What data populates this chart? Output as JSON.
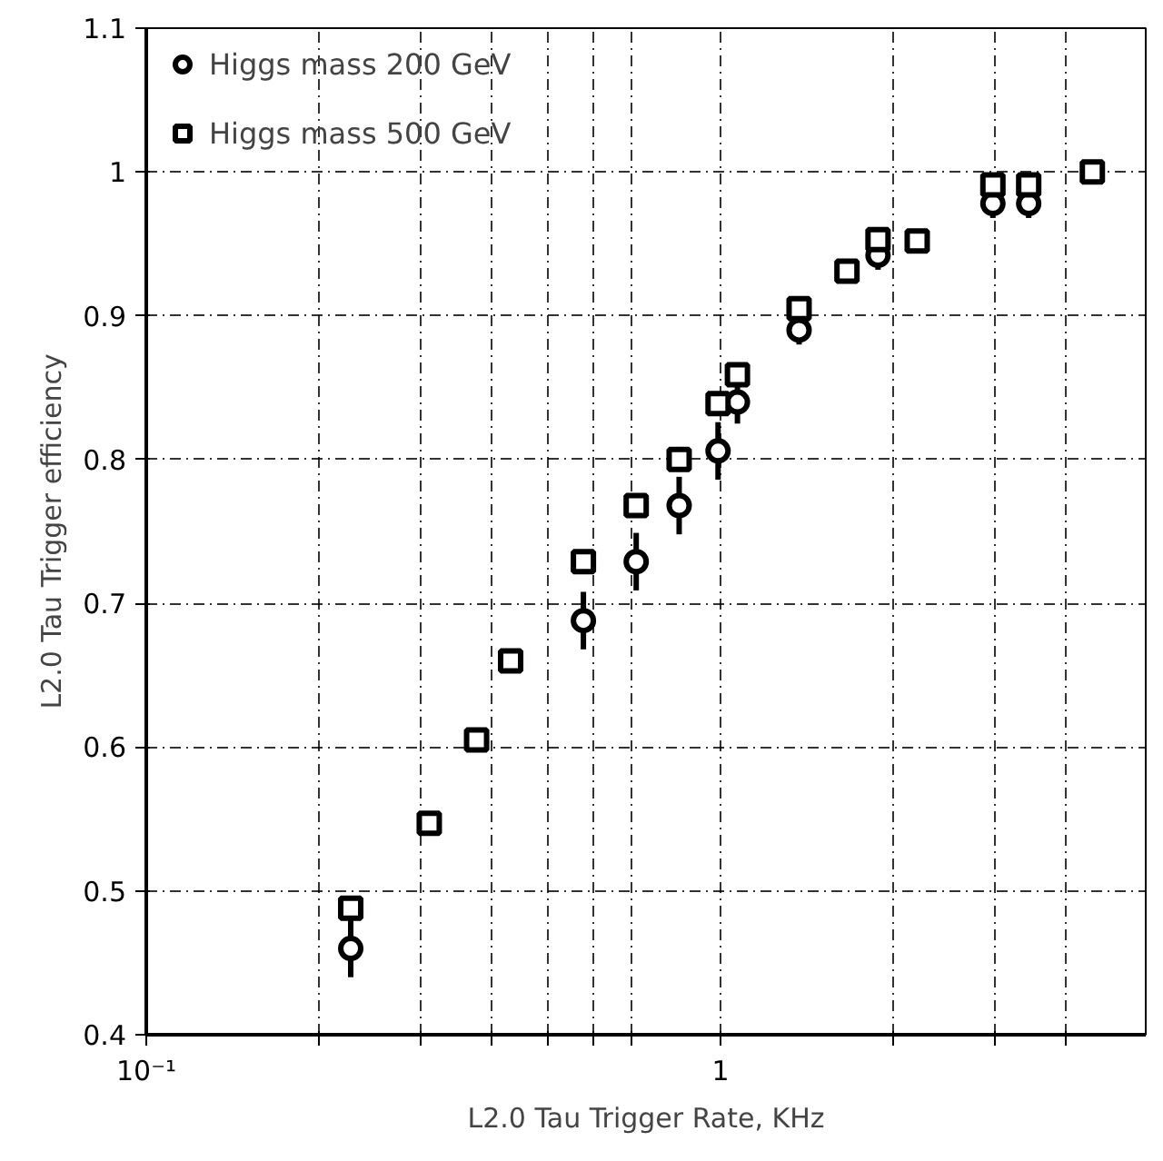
{
  "chart_data": {
    "type": "scatter",
    "xlabel": "L2.0 Tau Trigger Rate, KHz",
    "ylabel": "L2.0 Tau Trigger efficiency",
    "log": "x",
    "xlim": [
      0.1,
      5.5
    ],
    "ylim": [
      0.4,
      1.1
    ],
    "xticks": [
      {
        "value": 0.1,
        "label": "10⁻¹"
      },
      {
        "value": 0.2,
        "label": null
      },
      {
        "value": 0.3,
        "label": null
      },
      {
        "value": 0.4,
        "label": null
      },
      {
        "value": 0.5,
        "label": null
      },
      {
        "value": 0.6,
        "label": null
      },
      {
        "value": 0.7,
        "label": null
      },
      1,
      {
        "value": 2,
        "label": null
      },
      {
        "value": 3,
        "label": null
      },
      {
        "value": 4,
        "label": null
      }
    ],
    "yticks": [
      0.4,
      0.5,
      0.6,
      0.7,
      0.8,
      0.9,
      1,
      1.1
    ],
    "grid": true,
    "legend": "top left",
    "series": [
      {
        "name": "Higgs mass 200 GeV",
        "color": "#000000",
        "marker": "circle",
        "x": [
          0.227,
          0.311,
          0.376,
          0.431,
          0.577,
          0.713,
          0.847,
          0.99,
          1.07,
          1.37,
          1.88,
          2.2,
          2.98,
          3.44
        ],
        "values": [
          0.46,
          null,
          null,
          null,
          0.688,
          0.729,
          0.768,
          0.806,
          0.84,
          0.89,
          0.942,
          null,
          0.978,
          0.978
        ],
        "errors": [
          0.02,
          null,
          null,
          null,
          0.02,
          0.02,
          0.02,
          0.02,
          0.015,
          0.01,
          0.01,
          null,
          0.01,
          0.01
        ]
      },
      {
        "name": "Higgs mass 500 GeV",
        "color": "#000000",
        "marker": "square",
        "x": [
          0.227,
          0.311,
          0.376,
          0.431,
          0.577,
          0.713,
          0.847,
          0.99,
          1.07,
          1.37,
          1.66,
          1.88,
          2.2,
          2.98,
          3.44,
          4.44
        ],
        "values": [
          0.488,
          0.547,
          0.605,
          0.66,
          0.729,
          0.768,
          0.8,
          0.839,
          0.859,
          0.905,
          0.931,
          0.953,
          0.952,
          0.991,
          0.991,
          1.0
        ]
      }
    ]
  }
}
